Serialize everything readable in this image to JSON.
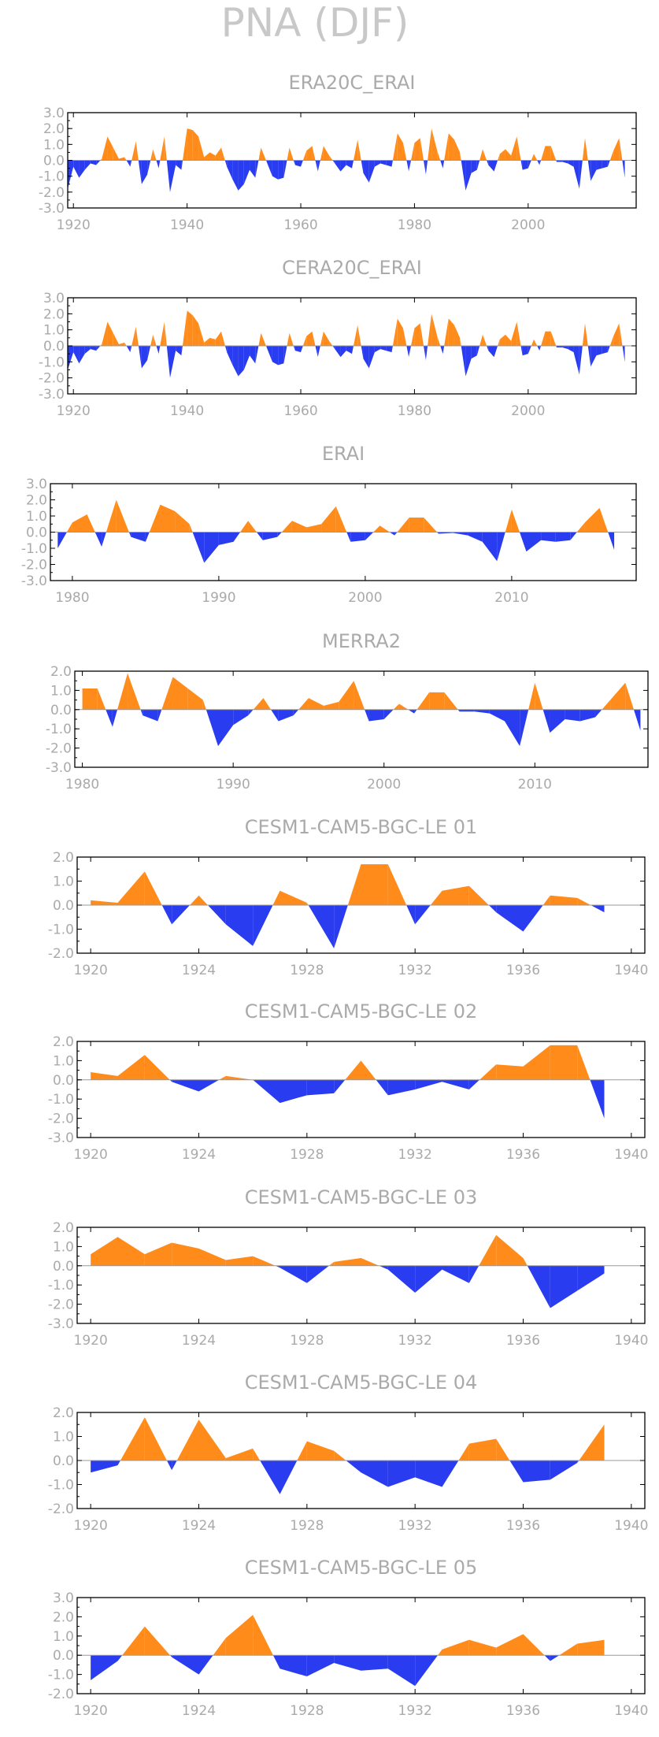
{
  "figure": {
    "title": "PNA (DJF)"
  },
  "colors": {
    "positive": "#ff8c1a",
    "negative": "#2a3cf0",
    "frame": "#000000",
    "text": "#aaaaaa"
  },
  "chart_data": [
    {
      "type": "area",
      "title": "ERA20C_ERAI",
      "xlim": [
        1919,
        2019
      ],
      "ylim": [
        -3,
        3
      ],
      "xticks": [
        1920,
        1940,
        1960,
        1980,
        2000
      ],
      "yticks": [
        3,
        2,
        1,
        0,
        -1,
        -2,
        -3
      ],
      "ytick_labels": [
        "3.0",
        "2.0",
        "1.0",
        "0.0",
        "-1.0",
        "-2.0",
        "-3.0"
      ],
      "x": [
        1919,
        1920,
        1921,
        1922,
        1923,
        1924,
        1925,
        1926,
        1927,
        1928,
        1929,
        1930,
        1931,
        1932,
        1933,
        1934,
        1935,
        1936,
        1937,
        1938,
        1939,
        1940,
        1941,
        1942,
        1943,
        1944,
        1945,
        1946,
        1947,
        1948,
        1949,
        1950,
        1951,
        1952,
        1953,
        1954,
        1955,
        1956,
        1957,
        1958,
        1959,
        1960,
        1961,
        1962,
        1963,
        1964,
        1965,
        1966,
        1967,
        1968,
        1969,
        1970,
        1971,
        1972,
        1973,
        1974,
        1975,
        1976,
        1977,
        1978,
        1979,
        1980,
        1981,
        1982,
        1983,
        1984,
        1985,
        1986,
        1987,
        1988,
        1989,
        1990,
        1991,
        1992,
        1993,
        1994,
        1995,
        1996,
        1997,
        1998,
        1999,
        2000,
        2001,
        2002,
        2003,
        2004,
        2005,
        2006,
        2007,
        2008,
        2009,
        2010,
        2011,
        2012,
        2013,
        2014,
        2015,
        2016,
        2017
      ],
      "values": [
        -1.8,
        -0.4,
        -1.1,
        -0.6,
        -0.2,
        -0.3,
        0.1,
        1.5,
        0.8,
        0.1,
        0.2,
        -0.4,
        1.2,
        -1.5,
        -0.9,
        0.7,
        -0.5,
        1.5,
        -2.0,
        -0.3,
        -0.6,
        2.0,
        1.9,
        1.5,
        0.2,
        0.5,
        0.3,
        0.8,
        -0.4,
        -1.2,
        -1.9,
        -1.5,
        -0.6,
        -1.1,
        0.8,
        -0.1,
        -1.0,
        -1.2,
        -1.1,
        0.8,
        -0.3,
        -0.4,
        0.6,
        0.9,
        -0.7,
        0.9,
        0.3,
        -0.2,
        -0.7,
        -0.3,
        -0.5,
        1.3,
        -0.8,
        -1.4,
        -0.4,
        -0.2,
        -0.3,
        -0.4,
        1.7,
        1.1,
        -0.7,
        1.1,
        1.4,
        -0.9,
        2.0,
        0.6,
        -0.5,
        1.7,
        1.3,
        0.5,
        -1.9,
        -0.8,
        -0.6,
        0.7,
        -0.3,
        -0.7,
        0.4,
        0.7,
        0.3,
        1.5,
        -0.6,
        -0.5,
        0.4,
        -0.3,
        0.9,
        0.9,
        -0.1,
        -0.1,
        -0.2,
        -0.4,
        -1.8,
        1.4,
        -1.3,
        -0.6,
        -0.5,
        -0.4,
        0.6,
        1.4,
        -1.1
      ]
    },
    {
      "type": "area",
      "title": "CERA20C_ERAI",
      "xlim": [
        1919,
        2019
      ],
      "ylim": [
        -3,
        3
      ],
      "xticks": [
        1920,
        1940,
        1960,
        1980,
        2000
      ],
      "yticks": [
        3,
        2,
        1,
        0,
        -1,
        -2,
        -3
      ],
      "ytick_labels": [
        "3.0",
        "2.0",
        "1.0",
        "0.0",
        "-1.0",
        "-2.0",
        "-3.0"
      ],
      "x": [
        1919,
        1920,
        1921,
        1922,
        1923,
        1924,
        1925,
        1926,
        1927,
        1928,
        1929,
        1930,
        1931,
        1932,
        1933,
        1934,
        1935,
        1936,
        1937,
        1938,
        1939,
        1940,
        1941,
        1942,
        1943,
        1944,
        1945,
        1946,
        1947,
        1948,
        1949,
        1950,
        1951,
        1952,
        1953,
        1954,
        1955,
        1956,
        1957,
        1958,
        1959,
        1960,
        1961,
        1962,
        1963,
        1964,
        1965,
        1966,
        1967,
        1968,
        1969,
        1970,
        1971,
        1972,
        1973,
        1974,
        1975,
        1976,
        1977,
        1978,
        1979,
        1980,
        1981,
        1982,
        1983,
        1984,
        1985,
        1986,
        1987,
        1988,
        1989,
        1990,
        1991,
        1992,
        1993,
        1994,
        1995,
        1996,
        1997,
        1998,
        1999,
        2000,
        2001,
        2002,
        2003,
        2004,
        2005,
        2006,
        2007,
        2008,
        2009,
        2010,
        2011,
        2012,
        2013,
        2014,
        2015,
        2016,
        2017
      ],
      "values": [
        -1.5,
        -0.4,
        -1.1,
        -0.5,
        -0.2,
        -0.3,
        0.1,
        1.5,
        0.8,
        0.1,
        0.2,
        -0.4,
        1.2,
        -1.4,
        -0.9,
        0.7,
        -0.5,
        1.5,
        -2.0,
        -0.3,
        -0.6,
        2.2,
        1.9,
        1.4,
        0.2,
        0.5,
        0.4,
        0.9,
        -0.4,
        -1.2,
        -1.9,
        -1.5,
        -0.6,
        -1.1,
        0.8,
        -0.1,
        -1.0,
        -1.2,
        -1.1,
        0.8,
        -0.3,
        -0.4,
        0.6,
        0.9,
        -0.7,
        0.9,
        0.3,
        -0.2,
        -0.7,
        -0.3,
        -0.5,
        1.3,
        -0.8,
        -1.4,
        -0.4,
        -0.2,
        -0.3,
        -0.4,
        1.7,
        1.1,
        -0.7,
        1.1,
        1.4,
        -0.9,
        2.0,
        0.6,
        -0.5,
        1.7,
        1.3,
        0.5,
        -1.9,
        -0.8,
        -0.6,
        0.7,
        -0.3,
        -0.7,
        0.4,
        0.7,
        0.3,
        1.5,
        -0.6,
        -0.5,
        0.4,
        -0.3,
        0.9,
        0.9,
        -0.1,
        -0.1,
        -0.2,
        -0.4,
        -1.8,
        1.4,
        -1.3,
        -0.6,
        -0.5,
        -0.4,
        0.6,
        1.4,
        -1.0
      ]
    },
    {
      "type": "area",
      "title": "ERAI",
      "xlim": [
        1978.5,
        2018.5
      ],
      "ylim": [
        -3,
        3
      ],
      "xticks": [
        1980,
        1990,
        2000,
        2010
      ],
      "yticks": [
        3,
        2,
        1,
        0,
        -1,
        -2,
        -3
      ],
      "ytick_labels": [
        "3.0",
        "2.0",
        "1.0",
        "0.0",
        "-1.0",
        "-2.0",
        "-3.0"
      ],
      "x": [
        1979,
        1980,
        1981,
        1982,
        1983,
        1984,
        1985,
        1986,
        1987,
        1988,
        1989,
        1990,
        1991,
        1992,
        1993,
        1994,
        1995,
        1996,
        1997,
        1998,
        1999,
        2000,
        2001,
        2002,
        2003,
        2004,
        2005,
        2006,
        2007,
        2008,
        2009,
        2010,
        2011,
        2012,
        2013,
        2014,
        2015,
        2016,
        2017
      ],
      "values": [
        -1.0,
        0.6,
        1.1,
        -0.9,
        2.0,
        -0.3,
        -0.6,
        1.7,
        1.3,
        0.5,
        -1.9,
        -0.8,
        -0.6,
        0.7,
        -0.5,
        -0.3,
        0.7,
        0.3,
        0.5,
        1.6,
        -0.6,
        -0.5,
        0.4,
        -0.2,
        0.9,
        0.9,
        -0.1,
        -0.05,
        -0.2,
        -0.6,
        -1.8,
        1.4,
        -1.2,
        -0.5,
        -0.6,
        -0.5,
        0.6,
        1.5,
        -1.1
      ]
    },
    {
      "type": "area",
      "title": "MERRA2",
      "xlim": [
        1979.5,
        2017.5
      ],
      "ylim": [
        -3,
        2
      ],
      "xticks": [
        1980,
        1990,
        2000,
        2010
      ],
      "yticks": [
        2,
        1,
        0,
        -1,
        -2,
        -3
      ],
      "ytick_labels": [
        "2.0",
        "1.0",
        "0.0",
        "-1.0",
        "-2.0",
        "-3.0"
      ],
      "x": [
        1980,
        1981,
        1982,
        1983,
        1984,
        1985,
        1986,
        1987,
        1988,
        1989,
        1990,
        1991,
        1992,
        1993,
        1994,
        1995,
        1996,
        1997,
        1998,
        1999,
        2000,
        2001,
        2002,
        2003,
        2004,
        2005,
        2006,
        2007,
        2008,
        2009,
        2010,
        2011,
        2012,
        2013,
        2014,
        2015,
        2016,
        2017
      ],
      "values": [
        1.1,
        1.1,
        -0.9,
        1.9,
        -0.3,
        -0.6,
        1.7,
        1.1,
        0.5,
        -1.9,
        -0.8,
        -0.3,
        0.6,
        -0.6,
        -0.3,
        0.6,
        0.2,
        0.4,
        1.5,
        -0.6,
        -0.5,
        0.3,
        -0.2,
        0.9,
        0.9,
        -0.1,
        -0.1,
        -0.2,
        -0.6,
        -1.9,
        1.4,
        -1.2,
        -0.5,
        -0.6,
        -0.4,
        0.5,
        1.4,
        -1.1
      ]
    },
    {
      "type": "area",
      "title": "CESM1-CAM5-BGC-LE 01",
      "xlim": [
        1919.5,
        1940.5
      ],
      "ylim": [
        -2,
        2
      ],
      "xticks": [
        1920,
        1924,
        1928,
        1932,
        1936,
        1940
      ],
      "yticks": [
        2,
        1,
        0,
        -1,
        -2
      ],
      "ytick_labels": [
        "2.0",
        "1.0",
        "0.0",
        "-1.0",
        "-2.0"
      ],
      "x": [
        1920,
        1921,
        1922,
        1923,
        1924,
        1925,
        1926,
        1927,
        1928,
        1929,
        1930,
        1931,
        1932,
        1933,
        1934,
        1935,
        1936,
        1937,
        1938,
        1939
      ],
      "values": [
        0.2,
        0.1,
        1.4,
        -0.8,
        0.4,
        -0.8,
        -1.7,
        0.6,
        0.1,
        -1.8,
        1.7,
        1.7,
        -0.8,
        0.6,
        0.8,
        -0.3,
        -1.1,
        0.4,
        0.3,
        -0.3
      ]
    },
    {
      "type": "area",
      "title": "CESM1-CAM5-BGC-LE 02",
      "xlim": [
        1919.5,
        1940.5
      ],
      "ylim": [
        -3,
        2
      ],
      "xticks": [
        1920,
        1924,
        1928,
        1932,
        1936,
        1940
      ],
      "yticks": [
        2,
        1,
        0,
        -1,
        -2,
        -3
      ],
      "ytick_labels": [
        "2.0",
        "1.0",
        "0.0",
        "-1.0",
        "-2.0",
        "-3.0"
      ],
      "x": [
        1920,
        1921,
        1922,
        1923,
        1924,
        1925,
        1926,
        1927,
        1928,
        1929,
        1930,
        1931,
        1932,
        1933,
        1934,
        1935,
        1936,
        1937,
        1938,
        1939
      ],
      "values": [
        0.4,
        0.2,
        1.3,
        -0.1,
        -0.6,
        0.2,
        0.0,
        -1.2,
        -0.8,
        -0.7,
        1.0,
        -0.8,
        -0.5,
        -0.1,
        -0.5,
        0.8,
        0.7,
        1.8,
        1.8,
        -2.0
      ]
    },
    {
      "type": "area",
      "title": "CESM1-CAM5-BGC-LE 03",
      "xlim": [
        1919.5,
        1940.5
      ],
      "ylim": [
        -3,
        2
      ],
      "xticks": [
        1920,
        1924,
        1928,
        1932,
        1936,
        1940
      ],
      "yticks": [
        2,
        1,
        0,
        -1,
        -2,
        -3
      ],
      "ytick_labels": [
        "2.0",
        "1.0",
        "0.0",
        "-1.0",
        "-2.0",
        "-3.0"
      ],
      "x": [
        1920,
        1921,
        1922,
        1923,
        1924,
        1925,
        1926,
        1927,
        1928,
        1929,
        1930,
        1931,
        1932,
        1933,
        1934,
        1935,
        1936,
        1937,
        1938,
        1939
      ],
      "values": [
        0.6,
        1.5,
        0.6,
        1.2,
        0.9,
        0.3,
        0.5,
        -0.1,
        -0.9,
        0.2,
        0.4,
        -0.2,
        -1.4,
        -0.2,
        -0.9,
        1.6,
        0.4,
        -2.2,
        -1.3,
        -0.4
      ]
    },
    {
      "type": "area",
      "title": "CESM1-CAM5-BGC-LE 04",
      "xlim": [
        1919.5,
        1940.5
      ],
      "ylim": [
        -2,
        2
      ],
      "xticks": [
        1920,
        1924,
        1928,
        1932,
        1936,
        1940
      ],
      "yticks": [
        2,
        1,
        0,
        -1,
        -2
      ],
      "ytick_labels": [
        "2.0",
        "1.0",
        "0.0",
        "-1.0",
        "-2.0"
      ],
      "x": [
        1920,
        1921,
        1922,
        1923,
        1924,
        1925,
        1926,
        1927,
        1928,
        1929,
        1930,
        1931,
        1932,
        1933,
        1934,
        1935,
        1936,
        1937,
        1938,
        1939
      ],
      "values": [
        -0.5,
        -0.2,
        1.8,
        -0.4,
        1.7,
        0.1,
        0.5,
        -1.4,
        0.8,
        0.4,
        -0.5,
        -1.1,
        -0.7,
        -1.1,
        0.7,
        0.9,
        -0.9,
        -0.8,
        -0.1,
        1.5
      ]
    },
    {
      "type": "area",
      "title": "CESM1-CAM5-BGC-LE 05",
      "xlim": [
        1919.5,
        1940.5
      ],
      "ylim": [
        -2,
        3
      ],
      "xticks": [
        1920,
        1924,
        1928,
        1932,
        1936,
        1940
      ],
      "yticks": [
        3,
        2,
        1,
        0,
        -1,
        -2
      ],
      "ytick_labels": [
        "3.0",
        "2.0",
        "1.0",
        "0.0",
        "-1.0",
        "-2.0"
      ],
      "x": [
        1920,
        1921,
        1922,
        1923,
        1924,
        1925,
        1926,
        1927,
        1928,
        1929,
        1930,
        1931,
        1932,
        1933,
        1934,
        1935,
        1936,
        1937,
        1938,
        1939
      ],
      "values": [
        -1.3,
        -0.3,
        1.5,
        -0.1,
        -1.0,
        0.9,
        2.1,
        -0.7,
        -1.1,
        -0.4,
        -0.8,
        -0.7,
        -1.6,
        0.3,
        0.8,
        0.4,
        1.1,
        -0.3,
        0.6,
        0.8
      ]
    }
  ]
}
